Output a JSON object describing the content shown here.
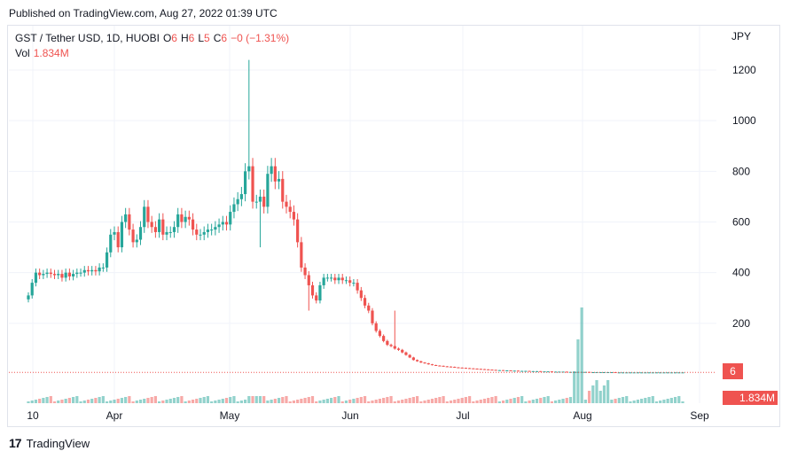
{
  "published": "Published on TradingView.com, Aug 27, 2022 01:39 UTC",
  "legend": {
    "symbol": "GST / Tether USD, 1D, HUOBI",
    "o_label": "O",
    "o_value": "6",
    "h_label": "H",
    "h_value": "6",
    "l_label": "L",
    "l_value": "5",
    "c_label": "C",
    "c_value": "6",
    "change": "−0 (−1.31%)",
    "vol_label": "Vol",
    "vol_value": "1.834M"
  },
  "currency": "JPY",
  "price_badge": "6",
  "volume_badge": "1.834M",
  "footer": {
    "logo": "17",
    "brand": "TradingView"
  },
  "colors": {
    "up": "#26a69a",
    "down": "#ef5350",
    "grid": "#f0f3fa",
    "text": "#131722"
  },
  "chart_data": {
    "type": "candlestick",
    "y_ticks": [
      200,
      400,
      600,
      800,
      1000,
      1200
    ],
    "x_ticks": [
      "10",
      "Apr",
      "May",
      "Jun",
      "Jul",
      "Aug",
      "Sep"
    ],
    "ylim": [
      0,
      1300
    ],
    "last_price": 6,
    "closes": [
      310,
      360,
      400,
      390,
      395,
      400,
      395,
      390,
      395,
      380,
      400,
      385,
      395,
      400,
      400,
      410,
      405,
      410,
      405,
      420,
      420,
      480,
      550,
      560,
      500,
      600,
      630,
      570,
      520,
      530,
      580,
      660,
      600,
      580,
      560,
      610,
      550,
      560,
      560,
      580,
      630,
      600,
      620,
      610,
      570,
      550,
      550,
      560,
      570,
      570,
      580,
      590,
      600,
      590,
      640,
      670,
      690,
      710,
      800,
      820,
      680,
      680,
      700,
      660,
      790,
      820,
      760,
      770,
      680,
      660,
      640,
      610,
      520,
      420,
      390,
      350,
      310,
      290,
      350,
      380,
      380,
      380,
      370,
      380,
      370,
      370,
      360,
      360,
      330,
      300,
      270,
      250,
      200,
      170,
      150,
      130,
      115,
      110,
      100,
      95,
      85,
      75,
      65,
      55,
      50,
      45,
      42,
      38,
      35,
      33,
      32,
      30,
      29,
      28,
      26,
      25,
      24,
      23,
      22,
      21,
      20,
      19,
      18,
      17,
      16,
      15,
      15,
      14,
      14,
      13,
      13,
      12,
      12,
      12,
      11,
      11,
      11,
      10,
      10,
      10,
      9,
      9,
      9,
      9,
      8,
      8,
      8,
      8,
      8,
      8,
      7,
      7,
      7,
      7,
      7,
      7,
      7,
      6,
      6,
      6,
      6,
      6,
      6,
      6,
      6,
      6,
      6,
      6,
      6,
      6,
      6,
      6,
      6,
      6,
      6,
      6
    ],
    "volume_scale_note": "relative volume bars; spike near late July"
  }
}
